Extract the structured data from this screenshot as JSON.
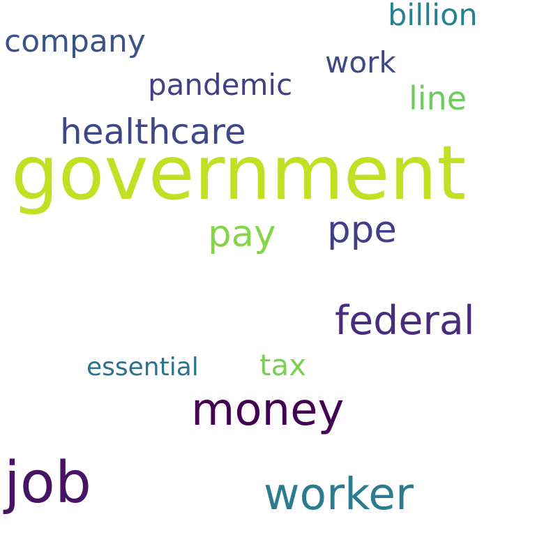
{
  "words": [
    {
      "text": "government",
      "color": "#c2df23"
    },
    {
      "text": "job",
      "color": "#471365"
    },
    {
      "text": "money",
      "color": "#440154"
    },
    {
      "text": "worker",
      "color": "#2c7b8e"
    },
    {
      "text": "federal",
      "color": "#472d7b"
    },
    {
      "text": "healthcare",
      "color": "#3f4788"
    },
    {
      "text": "ppe",
      "color": "#433e85"
    },
    {
      "text": "pay",
      "color": "#86d549"
    },
    {
      "text": "company",
      "color": "#3b528b"
    },
    {
      "text": "billion",
      "color": "#26828e"
    },
    {
      "text": "work",
      "color": "#3e4989"
    },
    {
      "text": "pandemic",
      "color": "#433e85"
    },
    {
      "text": "line",
      "color": "#6ccd5a"
    },
    {
      "text": "tax",
      "color": "#7ad151"
    },
    {
      "text": "essential",
      "color": "#2c728e"
    }
  ]
}
